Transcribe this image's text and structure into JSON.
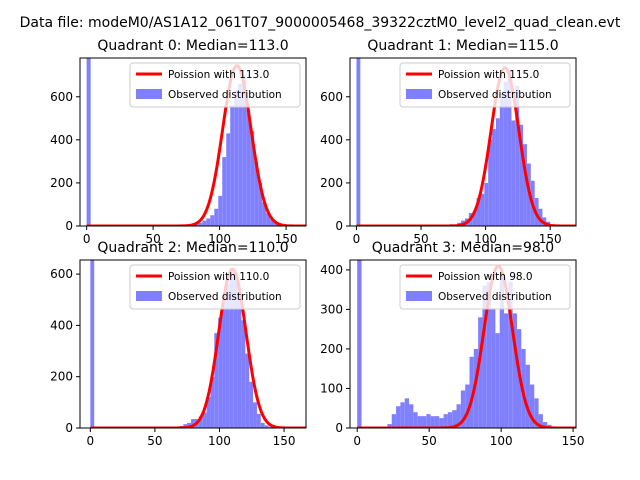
{
  "figure": {
    "suptitle": "Data file: modeM0/AS1A12_061T07_9000005468_39322cztM0_level2_quad_clean.evt",
    "colors": {
      "hist": "#8080ff",
      "fit": "#ff0000",
      "axes": "#000000"
    }
  },
  "chart_data": [
    {
      "type": "histogram+line",
      "title": "Quadrant 0: Median=113.0",
      "xlim": [
        -5,
        165
      ],
      "ylim": [
        0,
        780
      ],
      "xticks": [
        0,
        50,
        100,
        150
      ],
      "yticks": [
        0,
        200,
        400,
        600
      ],
      "legend": {
        "placement": "top-right",
        "entries": [
          "Poission with 113.0",
          "Observed distribution"
        ]
      },
      "poisson_mean": 113.0,
      "poisson_peak": 745,
      "bin_width": 3,
      "bins": [
        {
          "x": 0,
          "y": 780
        },
        {
          "x": 66,
          "y": 5
        },
        {
          "x": 69,
          "y": 5
        },
        {
          "x": 72,
          "y": 6
        },
        {
          "x": 75,
          "y": 8
        },
        {
          "x": 78,
          "y": 10
        },
        {
          "x": 81,
          "y": 12
        },
        {
          "x": 84,
          "y": 15
        },
        {
          "x": 87,
          "y": 25
        },
        {
          "x": 90,
          "y": 35
        },
        {
          "x": 93,
          "y": 50
        },
        {
          "x": 96,
          "y": 80
        },
        {
          "x": 99,
          "y": 140
        },
        {
          "x": 102,
          "y": 320
        },
        {
          "x": 105,
          "y": 430
        },
        {
          "x": 108,
          "y": 560
        },
        {
          "x": 111,
          "y": 630
        },
        {
          "x": 114,
          "y": 660
        },
        {
          "x": 117,
          "y": 700
        },
        {
          "x": 120,
          "y": 540
        },
        {
          "x": 123,
          "y": 440
        },
        {
          "x": 126,
          "y": 300
        },
        {
          "x": 129,
          "y": 200
        },
        {
          "x": 132,
          "y": 110
        },
        {
          "x": 135,
          "y": 60
        },
        {
          "x": 138,
          "y": 30
        },
        {
          "x": 141,
          "y": 15
        },
        {
          "x": 144,
          "y": 8
        },
        {
          "x": 147,
          "y": 5
        }
      ]
    },
    {
      "type": "histogram+line",
      "title": "Quadrant 1: Median=115.0",
      "xlim": [
        -5,
        170
      ],
      "ylim": [
        0,
        780
      ],
      "xticks": [
        0,
        50,
        100,
        150
      ],
      "yticks": [
        0,
        200,
        400,
        600
      ],
      "legend": {
        "placement": "top-right",
        "entries": [
          "Poission with 115.0",
          "Observed distribution"
        ]
      },
      "poisson_mean": 115.0,
      "poisson_peak": 735,
      "bin_width": 3,
      "bins": [
        {
          "x": 0,
          "y": 780
        },
        {
          "x": 66,
          "y": 5
        },
        {
          "x": 72,
          "y": 8
        },
        {
          "x": 78,
          "y": 15
        },
        {
          "x": 81,
          "y": 25
        },
        {
          "x": 84,
          "y": 35
        },
        {
          "x": 87,
          "y": 60
        },
        {
          "x": 90,
          "y": 70
        },
        {
          "x": 93,
          "y": 130
        },
        {
          "x": 96,
          "y": 150
        },
        {
          "x": 99,
          "y": 200
        },
        {
          "x": 102,
          "y": 400
        },
        {
          "x": 105,
          "y": 450
        },
        {
          "x": 108,
          "y": 500
        },
        {
          "x": 111,
          "y": 620
        },
        {
          "x": 114,
          "y": 670
        },
        {
          "x": 117,
          "y": 720
        },
        {
          "x": 120,
          "y": 490
        },
        {
          "x": 123,
          "y": 650
        },
        {
          "x": 126,
          "y": 470
        },
        {
          "x": 129,
          "y": 380
        },
        {
          "x": 132,
          "y": 290
        },
        {
          "x": 135,
          "y": 210
        },
        {
          "x": 138,
          "y": 130
        },
        {
          "x": 141,
          "y": 80
        },
        {
          "x": 144,
          "y": 40
        },
        {
          "x": 147,
          "y": 20
        },
        {
          "x": 150,
          "y": 8
        }
      ]
    },
    {
      "type": "histogram+line",
      "title": "Quadrant 2: Median=110.0",
      "xlim": [
        -8,
        167
      ],
      "ylim": [
        0,
        655
      ],
      "xticks": [
        0,
        50,
        100,
        150
      ],
      "yticks": [
        0,
        200,
        400,
        600
      ],
      "legend": {
        "placement": "top-right",
        "entries": [
          "Poission with 110.0",
          "Observed distribution"
        ]
      },
      "poisson_mean": 110.0,
      "poisson_peak": 620,
      "bin_width": 3,
      "bins": [
        {
          "x": 0,
          "y": 655
        },
        {
          "x": 60,
          "y": 3
        },
        {
          "x": 66,
          "y": 5
        },
        {
          "x": 69,
          "y": 8
        },
        {
          "x": 72,
          "y": 15
        },
        {
          "x": 75,
          "y": 20
        },
        {
          "x": 78,
          "y": 35
        },
        {
          "x": 81,
          "y": 35
        },
        {
          "x": 84,
          "y": 45
        },
        {
          "x": 87,
          "y": 60
        },
        {
          "x": 90,
          "y": 120
        },
        {
          "x": 93,
          "y": 200
        },
        {
          "x": 96,
          "y": 370
        },
        {
          "x": 99,
          "y": 430
        },
        {
          "x": 102,
          "y": 520
        },
        {
          "x": 105,
          "y": 560
        },
        {
          "x": 108,
          "y": 620
        },
        {
          "x": 111,
          "y": 600
        },
        {
          "x": 114,
          "y": 510
        },
        {
          "x": 117,
          "y": 420
        },
        {
          "x": 120,
          "y": 290
        },
        {
          "x": 123,
          "y": 180
        },
        {
          "x": 126,
          "y": 100
        },
        {
          "x": 129,
          "y": 55
        },
        {
          "x": 132,
          "y": 20
        },
        {
          "x": 135,
          "y": 10
        },
        {
          "x": 138,
          "y": 5
        }
      ]
    },
    {
      "type": "histogram+line",
      "title": "Quadrant 3: Median=98.0",
      "xlim": [
        -5,
        152
      ],
      "ylim": [
        0,
        425
      ],
      "xticks": [
        0,
        50,
        100,
        150
      ],
      "yticks": [
        0,
        100,
        200,
        300,
        400
      ],
      "legend": {
        "placement": "top-right",
        "entries": [
          "Poission with 98.0",
          "Observed distribution"
        ]
      },
      "poisson_mean": 98.0,
      "poisson_peak": 410,
      "bin_width": 3,
      "bins": [
        {
          "x": 0,
          "y": 425
        },
        {
          "x": 21,
          "y": 10
        },
        {
          "x": 24,
          "y": 35
        },
        {
          "x": 27,
          "y": 55
        },
        {
          "x": 30,
          "y": 65
        },
        {
          "x": 33,
          "y": 75
        },
        {
          "x": 36,
          "y": 60
        },
        {
          "x": 39,
          "y": 40
        },
        {
          "x": 42,
          "y": 30
        },
        {
          "x": 45,
          "y": 30
        },
        {
          "x": 48,
          "y": 35
        },
        {
          "x": 51,
          "y": 30
        },
        {
          "x": 54,
          "y": 30
        },
        {
          "x": 57,
          "y": 25
        },
        {
          "x": 60,
          "y": 35
        },
        {
          "x": 63,
          "y": 40
        },
        {
          "x": 66,
          "y": 45
        },
        {
          "x": 69,
          "y": 60
        },
        {
          "x": 72,
          "y": 95
        },
        {
          "x": 75,
          "y": 110
        },
        {
          "x": 78,
          "y": 180
        },
        {
          "x": 81,
          "y": 200
        },
        {
          "x": 84,
          "y": 280
        },
        {
          "x": 87,
          "y": 360
        },
        {
          "x": 90,
          "y": 370
        },
        {
          "x": 93,
          "y": 300
        },
        {
          "x": 96,
          "y": 240
        },
        {
          "x": 99,
          "y": 390
        },
        {
          "x": 102,
          "y": 290
        },
        {
          "x": 105,
          "y": 370
        },
        {
          "x": 108,
          "y": 290
        },
        {
          "x": 111,
          "y": 250
        },
        {
          "x": 114,
          "y": 200
        },
        {
          "x": 117,
          "y": 160
        },
        {
          "x": 120,
          "y": 110
        },
        {
          "x": 123,
          "y": 75
        },
        {
          "x": 126,
          "y": 35
        },
        {
          "x": 129,
          "y": 15
        },
        {
          "x": 132,
          "y": 8
        }
      ]
    }
  ]
}
